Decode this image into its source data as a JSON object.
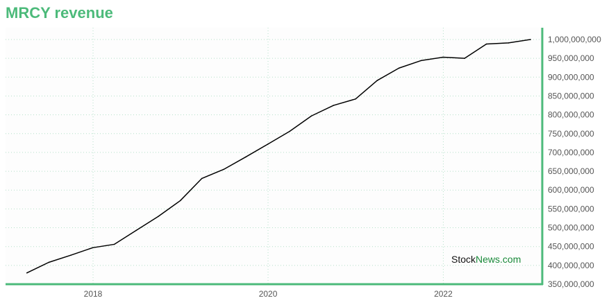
{
  "title": "MRCY revenue",
  "watermark": {
    "part1": "Stock",
    "part2": "News",
    "part3": ".com"
  },
  "colors": {
    "accent": "#4cba7a",
    "line": "#000000",
    "grid": "#b4e0c8",
    "plot_background": "#fdfdfd"
  },
  "chart_data": {
    "type": "line",
    "title": "MRCY revenue",
    "xlabel": "",
    "ylabel": "",
    "grid": true,
    "y_axis_side": "right",
    "xlim": [
      "2017-01-01",
      "2023-02-15"
    ],
    "ylim": [
      350000000,
      1000000000
    ],
    "x_ticks": [
      "2018",
      "2020",
      "2022"
    ],
    "y_ticks": [
      "350,000,000",
      "400,000,000",
      "450,000,000",
      "500,000,000",
      "550,000,000",
      "600,000,000",
      "650,000,000",
      "700,000,000",
      "750,000,000",
      "800,000,000",
      "850,000,000",
      "900,000,000",
      "950,000,000",
      "1,000,000,000"
    ],
    "series": [
      {
        "x": [
          "2017-03-31",
          "2017-06-30",
          "2017-09-30",
          "2017-12-31",
          "2018-03-31",
          "2018-06-30",
          "2018-09-30",
          "2018-12-31",
          "2019-03-31",
          "2019-06-30",
          "2019-09-30",
          "2019-12-31",
          "2020-03-31",
          "2020-06-30",
          "2020-09-30",
          "2020-12-31",
          "2021-03-31",
          "2021-06-30",
          "2021-09-30",
          "2021-12-31",
          "2022-03-31",
          "2022-06-30",
          "2022-09-30",
          "2022-12-31"
        ],
        "values": [
          380000000,
          408000000,
          427000000,
          447000000,
          456000000,
          493000000,
          530000000,
          572000000,
          631000000,
          655000000,
          688000000,
          722000000,
          756000000,
          797000000,
          825000000,
          842000000,
          891000000,
          924000000,
          944000000,
          953000000,
          950000000,
          988000000,
          991000000,
          1000000000
        ]
      }
    ]
  }
}
